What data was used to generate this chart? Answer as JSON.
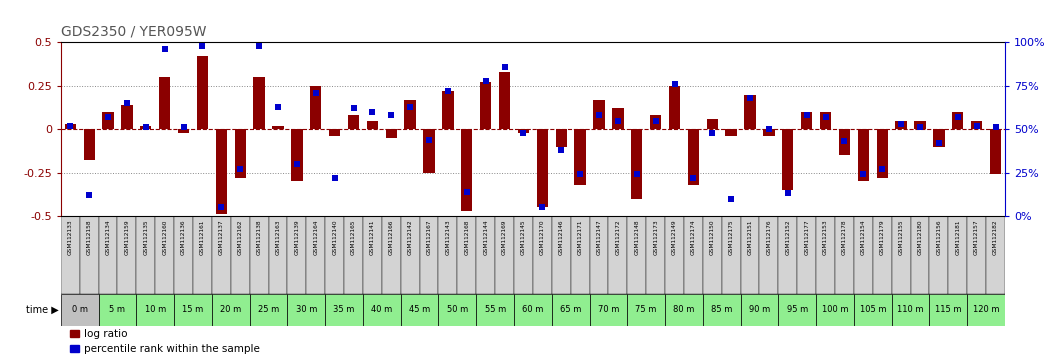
{
  "title": "GDS2350 / YER095W",
  "gsm_labels": [
    "GSM112133",
    "GSM112158",
    "GSM112134",
    "GSM112159",
    "GSM112135",
    "GSM112160",
    "GSM112136",
    "GSM112161",
    "GSM112137",
    "GSM112162",
    "GSM112138",
    "GSM112163",
    "GSM112139",
    "GSM112164",
    "GSM112140",
    "GSM112165",
    "GSM112141",
    "GSM112166",
    "GSM112142",
    "GSM112167",
    "GSM112143",
    "GSM112168",
    "GSM112144",
    "GSM112169",
    "GSM112145",
    "GSM112170",
    "GSM112146",
    "GSM112171",
    "GSM112147",
    "GSM112172",
    "GSM112148",
    "GSM112173",
    "GSM112149",
    "GSM112174",
    "GSM112150",
    "GSM112175",
    "GSM112151",
    "GSM112176",
    "GSM112152",
    "GSM112177",
    "GSM112153",
    "GSM112178",
    "GSM112154",
    "GSM112179",
    "GSM112155",
    "GSM112180",
    "GSM112156",
    "GSM112181",
    "GSM112157",
    "GSM112182"
  ],
  "time_labels": [
    "0 m",
    "5 m",
    "10 m",
    "15 m",
    "20 m",
    "25 m",
    "30 m",
    "35 m",
    "40 m",
    "45 m",
    "50 m",
    "55 m",
    "60 m",
    "65 m",
    "70 m",
    "75 m",
    "80 m",
    "85 m",
    "90 m",
    "95 m",
    "100 m",
    "105 m",
    "110 m",
    "115 m",
    "120 m"
  ],
  "log_ratio": [
    0.03,
    -0.18,
    0.1,
    0.14,
    0.02,
    0.3,
    -0.02,
    0.42,
    -0.49,
    -0.28,
    0.3,
    0.02,
    -0.3,
    0.25,
    -0.04,
    0.08,
    0.05,
    -0.05,
    0.17,
    -0.25,
    0.22,
    -0.47,
    0.27,
    0.33,
    -0.02,
    -0.45,
    -0.1,
    -0.32,
    0.17,
    0.12,
    -0.4,
    0.08,
    0.25,
    -0.32,
    0.06,
    -0.04,
    0.2,
    -0.04,
    -0.35,
    0.1,
    0.1,
    -0.15,
    -0.3,
    -0.28,
    0.05,
    0.05,
    -0.1,
    0.1,
    0.05,
    -0.26
  ],
  "percentile_rank": [
    52,
    12,
    57,
    65,
    51,
    96,
    51,
    98,
    5,
    27,
    98,
    63,
    30,
    71,
    22,
    62,
    60,
    58,
    63,
    44,
    72,
    14,
    78,
    86,
    48,
    5,
    38,
    24,
    58,
    55,
    24,
    55,
    76,
    22,
    48,
    10,
    68,
    50,
    13,
    58,
    57,
    43,
    24,
    27,
    53,
    51,
    42,
    57,
    52,
    51
  ],
  "bar_color": "#8B0000",
  "dot_color": "#0000CC",
  "ylim_left": [
    -0.5,
    0.5
  ],
  "ylim_right": [
    0,
    100
  ],
  "bg_color_gsm": "#d3d3d3",
  "bg_color_time_green": "#90EE90",
  "bg_color_time_grey": "#c0c0c0",
  "title_color": "#555555",
  "axis_color_left": "#8B0000",
  "axis_color_right": "#0000CC",
  "yticks_left": [
    -0.5,
    -0.25,
    0.0,
    0.25,
    0.5
  ],
  "yticks_right": [
    0,
    25,
    50,
    75,
    100
  ],
  "ytick_labels_left": [
    "-0.5",
    "-0.25",
    "0",
    "0.25",
    "0.5"
  ],
  "ytick_labels_right": [
    "0%",
    "25%",
    "50%",
    "75%",
    "100%"
  ]
}
